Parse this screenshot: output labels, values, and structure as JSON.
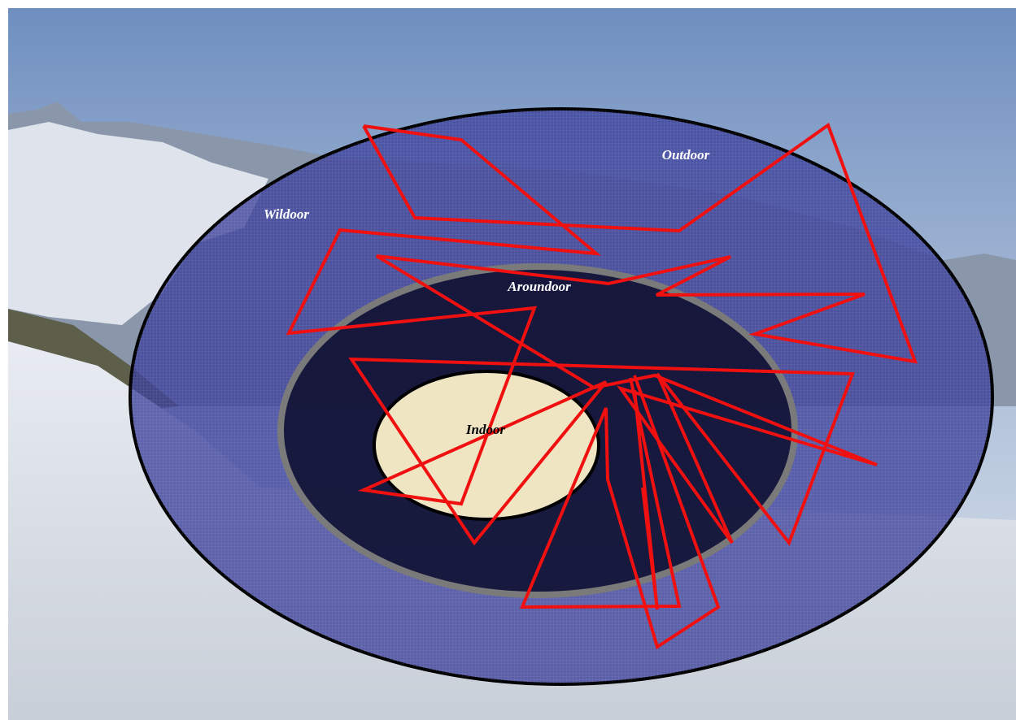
{
  "zones": {
    "outdoor": "Outdoor",
    "wildoor": "Wildoor",
    "aroundoor": "Aroundoor",
    "indoor": "Indoor"
  }
}
